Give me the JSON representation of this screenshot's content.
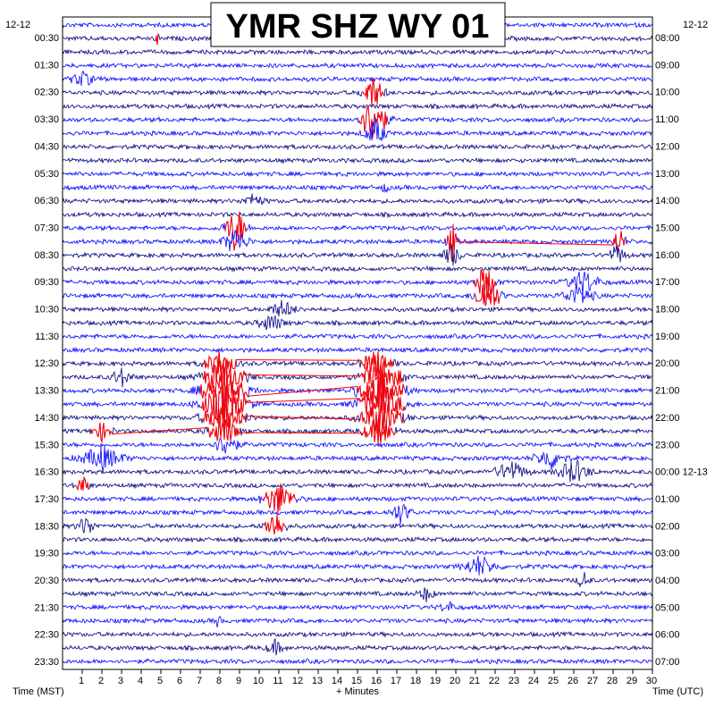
{
  "header": {
    "title": "YMR SHZ WY 01",
    "date_left": "12-12",
    "date_right": "12-12"
  },
  "footer": {
    "left_axis_label": "Time (MST)",
    "center_axis_label": "+ Minutes",
    "right_axis_label": "Time (UTC)"
  },
  "colors": {
    "trace_cycle": [
      "#0000ff",
      "#000080",
      "#ff0000",
      "#0000ff"
    ],
    "event_red": "#ff0000",
    "background": "#ffffff",
    "frame": "#000000"
  },
  "chart_data": {
    "type": "line",
    "title": "YMR SHZ WY 01",
    "xlabel": "+ Minutes",
    "ylabel_left": "Time (MST)",
    "ylabel_right": "Time (UTC)",
    "xlim": [
      0,
      30
    ],
    "x_ticks": [
      "1",
      "2",
      "3",
      "4",
      "5",
      "6",
      "7",
      "8",
      "9",
      "10",
      "11",
      "12",
      "13",
      "14",
      "15",
      "16",
      "17",
      "18",
      "19",
      "20",
      "21",
      "22",
      "23",
      "24",
      "25",
      "26",
      "27",
      "28",
      "29",
      "30"
    ],
    "rows": 48,
    "row_minutes": 30,
    "left_ticks": [
      "00:30",
      "01:30",
      "02:30",
      "03:30",
      "04:30",
      "05:30",
      "06:30",
      "07:30",
      "08:30",
      "09:30",
      "10:30",
      "11:30",
      "12:30",
      "13:30",
      "14:30",
      "15:30",
      "16:30",
      "17:30",
      "18:30",
      "19:30",
      "20:30",
      "21:30",
      "22:30",
      "23:30"
    ],
    "right_ticks": [
      "08:00",
      "09:00",
      "10:00",
      "11:00",
      "12:00",
      "13:00",
      "14:00",
      "15:00",
      "16:00",
      "17:00",
      "18:00",
      "19:00",
      "20:00",
      "21:00",
      "22:00",
      "23:00",
      "00:00 12-13",
      "01:00",
      "02:00",
      "03:00",
      "04:00",
      "05:00",
      "06:00",
      "07:00"
    ],
    "events": [
      {
        "row": 1,
        "minute": 4.8,
        "amp": 16,
        "width": 0.15,
        "red": true
      },
      {
        "row": 4,
        "minute": 1.0,
        "amp": 8,
        "width": 1.2,
        "red": false
      },
      {
        "row": 5,
        "minute": 15.8,
        "amp": 20,
        "width": 1.0,
        "red": true
      },
      {
        "row": 7,
        "minute": 15.8,
        "amp": 28,
        "width": 1.3,
        "red": true
      },
      {
        "row": 8,
        "minute": 15.9,
        "amp": 16,
        "width": 1.0,
        "red": false
      },
      {
        "row": 12,
        "minute": 16.4,
        "amp": 8,
        "width": 0.3,
        "red": false
      },
      {
        "row": 13,
        "minute": 9.7,
        "amp": 8,
        "width": 1.0,
        "red": false
      },
      {
        "row": 15,
        "minute": 8.8,
        "amp": 28,
        "width": 1.0,
        "red": true
      },
      {
        "row": 16,
        "minute": 8.8,
        "amp": 16,
        "width": 1.2,
        "red": false
      },
      {
        "row": 16,
        "minute": 19.8,
        "amp": 24,
        "width": 0.5,
        "red": true
      },
      {
        "row": 16,
        "minute": 28.3,
        "amp": 18,
        "width": 0.6,
        "red": true
      },
      {
        "row": 17,
        "minute": 19.8,
        "amp": 14,
        "width": 0.8,
        "red": false
      },
      {
        "row": 17,
        "minute": 28.2,
        "amp": 12,
        "width": 0.8,
        "red": false
      },
      {
        "row": 19,
        "minute": 21.5,
        "amp": 22,
        "width": 1.0,
        "red": true
      },
      {
        "row": 19,
        "minute": 26.5,
        "amp": 14,
        "width": 1.5,
        "red": false
      },
      {
        "row": 20,
        "minute": 21.6,
        "amp": 26,
        "width": 1.2,
        "red": true
      },
      {
        "row": 20,
        "minute": 26.2,
        "amp": 12,
        "width": 1.5,
        "red": false
      },
      {
        "row": 21,
        "minute": 11.2,
        "amp": 10,
        "width": 1.2,
        "red": false
      },
      {
        "row": 22,
        "minute": 10.6,
        "amp": 10,
        "width": 1.2,
        "red": false
      },
      {
        "row": 25,
        "minute": 8.0,
        "amp": 16,
        "width": 1.5,
        "red": true
      },
      {
        "row": 25,
        "minute": 16.0,
        "amp": 16,
        "width": 1.5,
        "red": true
      },
      {
        "row": 26,
        "minute": 8.2,
        "amp": 22,
        "width": 2.0,
        "red": true
      },
      {
        "row": 26,
        "minute": 16.2,
        "amp": 22,
        "width": 2.0,
        "red": true
      },
      {
        "row": 26,
        "minute": 3.0,
        "amp": 10,
        "width": 1.0,
        "red": false
      },
      {
        "row": 27,
        "minute": 8.2,
        "amp": 24,
        "width": 2.2,
        "red": true
      },
      {
        "row": 27,
        "minute": 16.2,
        "amp": 24,
        "width": 2.2,
        "red": true
      },
      {
        "row": 28,
        "minute": 8.2,
        "amp": 24,
        "width": 2.2,
        "red": true
      },
      {
        "row": 28,
        "minute": 16.2,
        "amp": 24,
        "width": 2.2,
        "red": true
      },
      {
        "row": 29,
        "minute": 8.2,
        "amp": 20,
        "width": 2.0,
        "red": true
      },
      {
        "row": 29,
        "minute": 16.2,
        "amp": 20,
        "width": 2.0,
        "red": true
      },
      {
        "row": 30,
        "minute": 8.2,
        "amp": 16,
        "width": 1.5,
        "red": true
      },
      {
        "row": 30,
        "minute": 16.1,
        "amp": 16,
        "width": 1.5,
        "red": true
      },
      {
        "row": 30,
        "minute": 2.0,
        "amp": 10,
        "width": 1.0,
        "red": true
      },
      {
        "row": 31,
        "minute": 8.3,
        "amp": 12,
        "width": 1.2,
        "red": false
      },
      {
        "row": 32,
        "minute": 2.0,
        "amp": 14,
        "width": 2.0,
        "red": false
      },
      {
        "row": 32,
        "minute": 24.8,
        "amp": 12,
        "width": 1.5,
        "red": false
      },
      {
        "row": 33,
        "minute": 22.8,
        "amp": 12,
        "width": 1.5,
        "red": false
      },
      {
        "row": 33,
        "minute": 26.0,
        "amp": 14,
        "width": 1.5,
        "red": false
      },
      {
        "row": 34,
        "minute": 1.0,
        "amp": 12,
        "width": 0.6,
        "red": true
      },
      {
        "row": 35,
        "minute": 11.0,
        "amp": 20,
        "width": 1.5,
        "red": true
      },
      {
        "row": 36,
        "minute": 17.2,
        "amp": 12,
        "width": 1.0,
        "red": false
      },
      {
        "row": 37,
        "minute": 1.2,
        "amp": 12,
        "width": 0.8,
        "red": false
      },
      {
        "row": 37,
        "minute": 10.8,
        "amp": 18,
        "width": 1.0,
        "red": true
      },
      {
        "row": 40,
        "minute": 21.2,
        "amp": 12,
        "width": 1.5,
        "red": false
      },
      {
        "row": 41,
        "minute": 26.5,
        "amp": 10,
        "width": 0.6,
        "red": false
      },
      {
        "row": 42,
        "minute": 18.5,
        "amp": 8,
        "width": 0.8,
        "red": false
      },
      {
        "row": 43,
        "minute": 19.6,
        "amp": 6,
        "width": 0.8,
        "red": false
      },
      {
        "row": 44,
        "minute": 7.9,
        "amp": 8,
        "width": 0.3,
        "red": false
      },
      {
        "row": 46,
        "minute": 10.8,
        "amp": 8,
        "width": 0.8,
        "red": false
      }
    ]
  }
}
